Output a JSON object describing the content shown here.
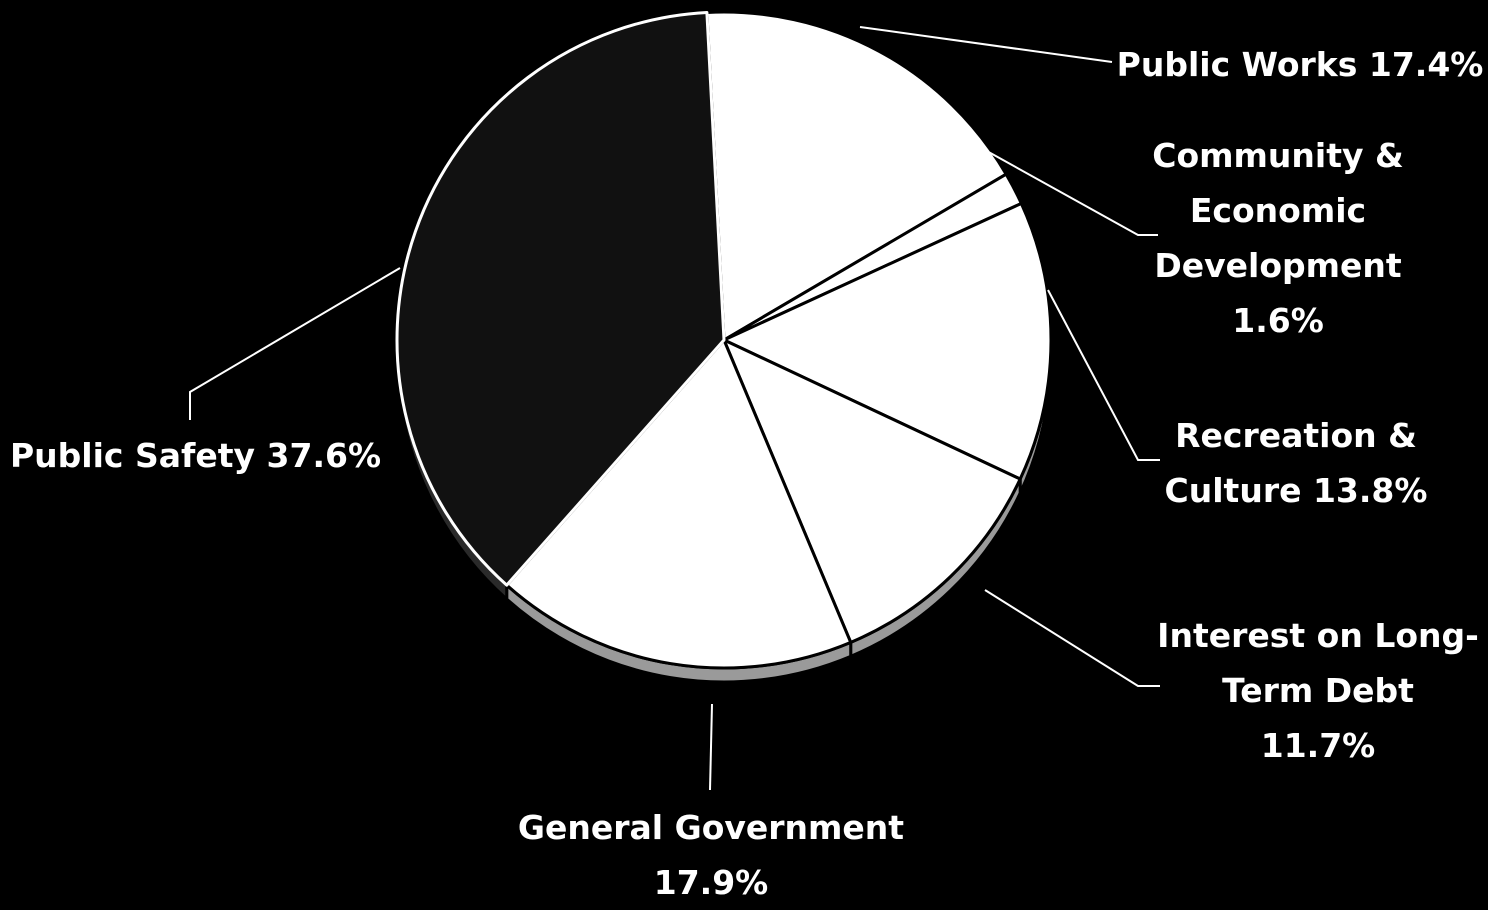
{
  "chart_data": {
    "type": "pie",
    "title": "",
    "slices": [
      {
        "label": "Public Works",
        "value": 17.4,
        "display": "Public Works 17.4%",
        "lines": [
          "Public Works 17.4%"
        ],
        "fill": "#ffffff"
      },
      {
        "label": "Community & Economic Development",
        "value": 1.6,
        "display": "Community & Economic Development 1.6%",
        "lines": [
          "Community &",
          "Economic",
          "Development",
          "1.6%"
        ],
        "fill": "#ffffff"
      },
      {
        "label": "Recreation & Culture",
        "value": 13.8,
        "display": "Recreation & Culture 13.8%",
        "lines": [
          "Recreation &",
          "Culture 13.8%"
        ],
        "fill": "#ffffff"
      },
      {
        "label": "Interest on Long-Term Debt",
        "value": 11.7,
        "display": "Interest on Long-Term Debt 11.7%",
        "lines": [
          "Interest on Long-",
          "Term Debt",
          "11.7%"
        ],
        "fill": "#ffffff"
      },
      {
        "label": "General Government",
        "value": 17.9,
        "display": "General Government 17.9%",
        "lines": [
          "General Government",
          "17.9%"
        ],
        "fill": "#ffffff"
      },
      {
        "label": "Public Safety",
        "value": 37.6,
        "display": "Public Safety 37.6%",
        "lines": [
          "Public Safety 37.6%"
        ],
        "fill": "#111111"
      }
    ],
    "colors": {
      "background": "#000000",
      "text": "#ffffff",
      "light_slice": "#ffffff",
      "dark_slice": "#111111",
      "slice_border": "#000000"
    }
  }
}
